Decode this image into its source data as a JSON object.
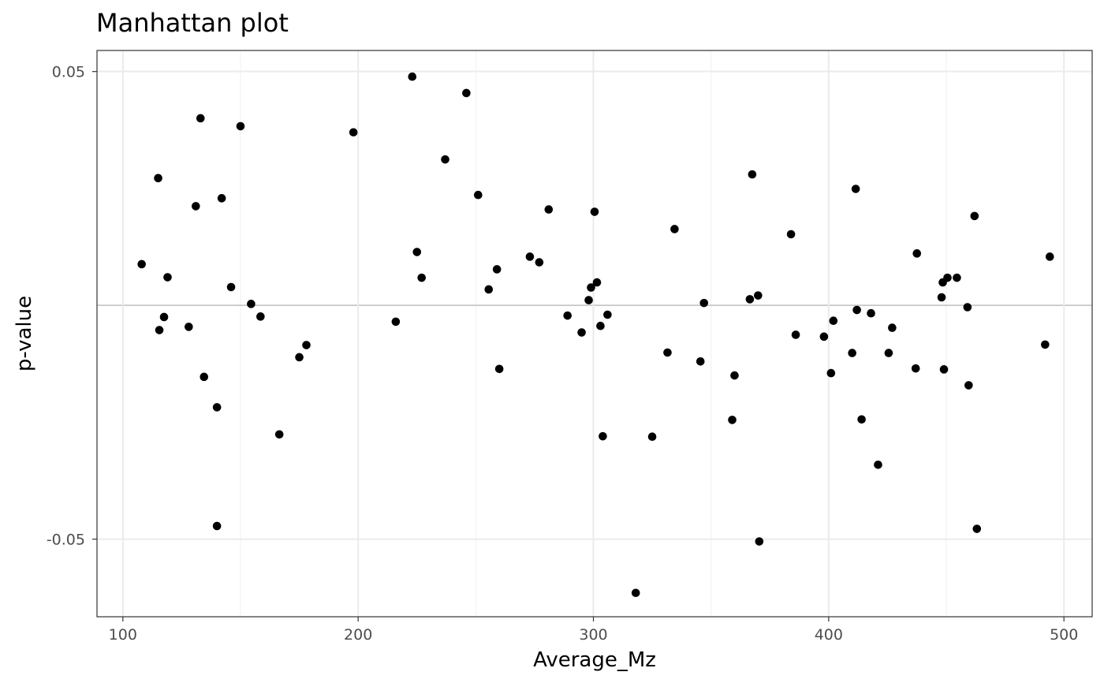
{
  "chart_data": {
    "type": "scatter",
    "title": "Manhattan plot",
    "xlabel": "Average_Mz",
    "ylabel": "p-value",
    "xlim": [
      89,
      512
    ],
    "ylim": [
      -0.0666,
      0.0545
    ],
    "x_ticks": [
      100,
      200,
      300,
      400,
      500
    ],
    "x_tick_labels": [
      "100",
      "200",
      "300",
      "400",
      "500"
    ],
    "y_ticks": [
      0.05,
      -0.05
    ],
    "y_tick_labels": [
      "0.05",
      "-0.05"
    ],
    "x_minor_grid": [
      150,
      250,
      350,
      450
    ],
    "y_minor_grid": [
      0.0
    ],
    "grid": true,
    "theme": "bw",
    "colors": {
      "points": "#000000",
      "grid_major": "#ebebeb",
      "grid_minor": "#f2f2f2",
      "zero_line": "#bebebe",
      "panel_border": "#333333"
    },
    "points": [
      {
        "x": 108,
        "y": 0.0088
      },
      {
        "x": 115,
        "y": 0.0272
      },
      {
        "x": 115.5,
        "y": -0.0053
      },
      {
        "x": 117.5,
        "y": -0.0025
      },
      {
        "x": 119,
        "y": 0.006
      },
      {
        "x": 128,
        "y": -0.0046
      },
      {
        "x": 131,
        "y": 0.0212
      },
      {
        "x": 133,
        "y": 0.04
      },
      {
        "x": 134.5,
        "y": -0.0153
      },
      {
        "x": 140,
        "y": -0.0218
      },
      {
        "x": 140,
        "y": -0.0472
      },
      {
        "x": 142,
        "y": 0.0229
      },
      {
        "x": 146,
        "y": 0.0039
      },
      {
        "x": 150,
        "y": 0.0383
      },
      {
        "x": 154.5,
        "y": 0.0003
      },
      {
        "x": 158.5,
        "y": -0.0024
      },
      {
        "x": 166.5,
        "y": -0.0276
      },
      {
        "x": 175,
        "y": -0.0111
      },
      {
        "x": 178,
        "y": -0.0085
      },
      {
        "x": 198,
        "y": 0.037
      },
      {
        "x": 216,
        "y": -0.0035
      },
      {
        "x": 223,
        "y": 0.0489
      },
      {
        "x": 225,
        "y": 0.0114
      },
      {
        "x": 227,
        "y": 0.0059
      },
      {
        "x": 237,
        "y": 0.0312
      },
      {
        "x": 246,
        "y": 0.0454
      },
      {
        "x": 251,
        "y": 0.0236
      },
      {
        "x": 255.5,
        "y": 0.0034
      },
      {
        "x": 259,
        "y": 0.0077
      },
      {
        "x": 260,
        "y": -0.0136
      },
      {
        "x": 273,
        "y": 0.0104
      },
      {
        "x": 277,
        "y": 0.0092
      },
      {
        "x": 281,
        "y": 0.0205
      },
      {
        "x": 289,
        "y": -0.0022
      },
      {
        "x": 295,
        "y": -0.0058
      },
      {
        "x": 298,
        "y": 0.0011
      },
      {
        "x": 299,
        "y": 0.0038
      },
      {
        "x": 300.5,
        "y": 0.02
      },
      {
        "x": 301.5,
        "y": 0.0049
      },
      {
        "x": 303,
        "y": -0.0044
      },
      {
        "x": 304,
        "y": -0.028
      },
      {
        "x": 306,
        "y": -0.002
      },
      {
        "x": 318,
        "y": -0.0615
      },
      {
        "x": 325,
        "y": -0.0281
      },
      {
        "x": 331.5,
        "y": -0.0101
      },
      {
        "x": 334.5,
        "y": 0.0163
      },
      {
        "x": 345.5,
        "y": -0.012
      },
      {
        "x": 347,
        "y": 0.0005
      },
      {
        "x": 359,
        "y": -0.0245
      },
      {
        "x": 360,
        "y": -0.015
      },
      {
        "x": 366.5,
        "y": 0.0013
      },
      {
        "x": 367.5,
        "y": 0.028
      },
      {
        "x": 370,
        "y": 0.0021
      },
      {
        "x": 370.5,
        "y": -0.0505
      },
      {
        "x": 384,
        "y": 0.0152
      },
      {
        "x": 386,
        "y": -0.0063
      },
      {
        "x": 398,
        "y": -0.0067
      },
      {
        "x": 401,
        "y": -0.0145
      },
      {
        "x": 402,
        "y": -0.0033
      },
      {
        "x": 410,
        "y": -0.0102
      },
      {
        "x": 411.5,
        "y": 0.0249
      },
      {
        "x": 412,
        "y": -0.001
      },
      {
        "x": 414,
        "y": -0.0244
      },
      {
        "x": 418,
        "y": -0.0017
      },
      {
        "x": 421,
        "y": -0.0341
      },
      {
        "x": 425.5,
        "y": -0.0102
      },
      {
        "x": 427,
        "y": -0.0048
      },
      {
        "x": 437,
        "y": -0.0135
      },
      {
        "x": 437.5,
        "y": 0.0111
      },
      {
        "x": 448,
        "y": 0.0017
      },
      {
        "x": 448.5,
        "y": 0.0049
      },
      {
        "x": 449,
        "y": -0.0137
      },
      {
        "x": 450.5,
        "y": 0.0059
      },
      {
        "x": 454.5,
        "y": 0.0059
      },
      {
        "x": 459,
        "y": -0.0004
      },
      {
        "x": 459.5,
        "y": -0.0171
      },
      {
        "x": 462,
        "y": 0.0191
      },
      {
        "x": 463,
        "y": -0.0478
      },
      {
        "x": 492,
        "y": -0.0084
      },
      {
        "x": 494,
        "y": 0.0104
      }
    ]
  }
}
